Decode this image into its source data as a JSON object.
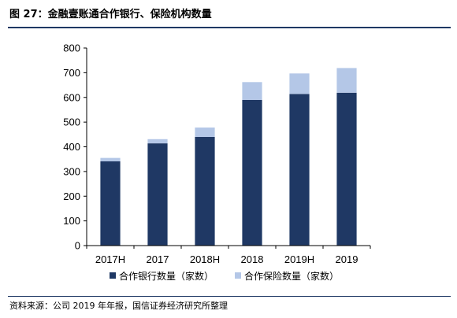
{
  "figure": {
    "title": "图 27：金融壹账通合作银行、保险机构数量",
    "source": "资料来源：公司 2019 年年报，国信证券经济研究所整理"
  },
  "colors": {
    "bank": "#1f3864",
    "insurance": "#b4c7e7",
    "rule": "#1f3864",
    "axis": "#000000"
  },
  "chart_data": {
    "type": "bar",
    "stacked": true,
    "categories": [
      "2017H",
      "2017",
      "2018H",
      "2018",
      "2019H",
      "2019"
    ],
    "series": [
      {
        "name": "合作银行数量（家数）",
        "values": [
          341,
          414,
          440,
          590,
          614,
          619
        ]
      },
      {
        "name": "合作保险数量（家数）",
        "values": [
          14,
          17,
          38,
          72,
          83,
          100
        ]
      }
    ],
    "ylim": [
      0,
      800
    ],
    "yticks": [
      0,
      100,
      200,
      300,
      400,
      500,
      600,
      700,
      800
    ],
    "legend_position": "bottom",
    "grid": false
  }
}
